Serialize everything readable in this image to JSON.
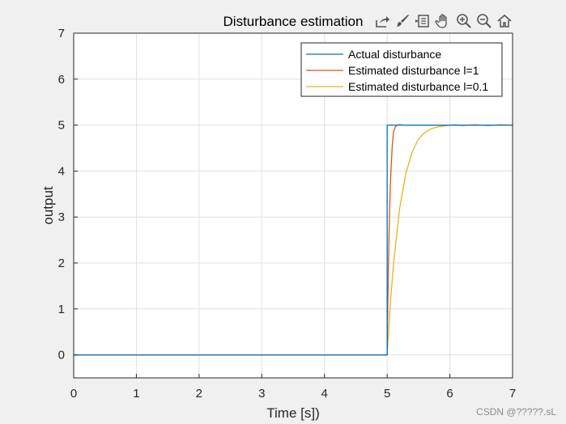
{
  "chart_data": {
    "type": "line",
    "title": "Disturbance estimation",
    "xlabel": "Time [s])",
    "ylabel": "output",
    "xlim": [
      0,
      7
    ],
    "ylim": [
      -0.5,
      7
    ],
    "xticks": [
      0,
      1,
      2,
      3,
      4,
      5,
      6,
      7
    ],
    "yticks": [
      0,
      1,
      2,
      3,
      4,
      5,
      6,
      7
    ],
    "grid": true,
    "legend_position": "top-right",
    "series": [
      {
        "name": "Actual disturbance",
        "color": "#0072BD",
        "x": [
          0,
          4.99,
          5.0,
          5.0,
          7.0
        ],
        "y": [
          0,
          0,
          0,
          5,
          5
        ]
      },
      {
        "name": "Estimated disturbance l=1",
        "color": "#D95319",
        "x": [
          0,
          5.0,
          5.01,
          5.02,
          5.03,
          5.04,
          5.05,
          5.06,
          5.08,
          5.1,
          5.13,
          5.16,
          5.2,
          5.25,
          5.3,
          5.4,
          5.6,
          6.0,
          7.0
        ],
        "y": [
          0,
          0,
          1.08,
          1.94,
          2.63,
          3.19,
          3.63,
          3.99,
          4.52,
          4.84,
          4.96,
          5.0,
          5.01,
          5.0,
          5.0,
          5.0,
          5.0,
          5.0,
          5.0
        ]
      },
      {
        "name": "Estimated disturbance l=0.1",
        "color": "#EDB120",
        "x": [
          0,
          5.0,
          5.05,
          5.1,
          5.2,
          5.3,
          5.4,
          5.5,
          5.6,
          5.7,
          5.8,
          5.9,
          6.0,
          6.1,
          6.2,
          6.4,
          6.6,
          6.8,
          7.0
        ],
        "y": [
          0,
          0,
          1.1,
          1.97,
          3.2,
          3.96,
          4.42,
          4.7,
          4.84,
          4.92,
          4.96,
          4.98,
          5.0,
          5.01,
          4.99,
          5.01,
          4.99,
          5.01,
          5.0
        ]
      }
    ]
  },
  "toolbar": {
    "buttons": [
      "export-icon",
      "brush-icon",
      "datatip-icon",
      "pan-hand-icon",
      "zoom-in-icon",
      "zoom-out-icon",
      "home-icon"
    ]
  },
  "watermark": "CSDN @?????.sL"
}
